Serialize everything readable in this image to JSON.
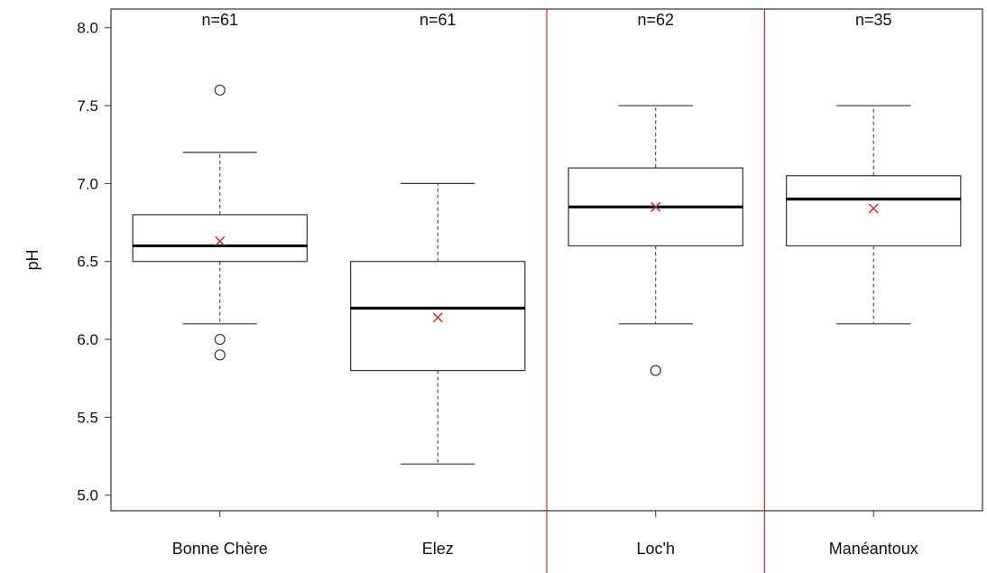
{
  "chart_data": {
    "type": "boxplot",
    "title": "",
    "xlabel": "",
    "ylabel": "pH",
    "ylim": [
      4.9,
      8.12
    ],
    "yticks": [
      "5.0",
      "5.5",
      "6.0",
      "6.5",
      "7.0",
      "7.5",
      "8.0"
    ],
    "grid": false,
    "legend": "none",
    "highlight_color": "#d62728",
    "mean_marker_color": "#d62728",
    "highlighted_category": "Loc'h",
    "groups": [
      {
        "category": "Bonne Chère",
        "n_label": "n=61",
        "whisker_low": 6.1,
        "q1": 6.5,
        "median": 6.6,
        "q3": 6.8,
        "whisker_high": 7.2,
        "mean": 6.63,
        "outliers": [
          7.6,
          6.0,
          5.9
        ]
      },
      {
        "category": "Elez",
        "n_label": "n=61",
        "whisker_low": 5.2,
        "q1": 5.8,
        "median": 6.2,
        "q3": 6.5,
        "whisker_high": 7.0,
        "mean": 6.14,
        "outliers": []
      },
      {
        "category": "Loc'h",
        "n_label": "n=62",
        "whisker_low": 6.1,
        "q1": 6.6,
        "median": 6.85,
        "q3": 7.1,
        "whisker_high": 7.5,
        "mean": 6.85,
        "outliers": [
          5.8
        ]
      },
      {
        "category": "Manéantoux",
        "n_label": "n=35",
        "whisker_low": 6.1,
        "q1": 6.6,
        "median": 6.9,
        "q3": 7.05,
        "whisker_high": 7.5,
        "mean": 6.84,
        "outliers": []
      }
    ]
  }
}
